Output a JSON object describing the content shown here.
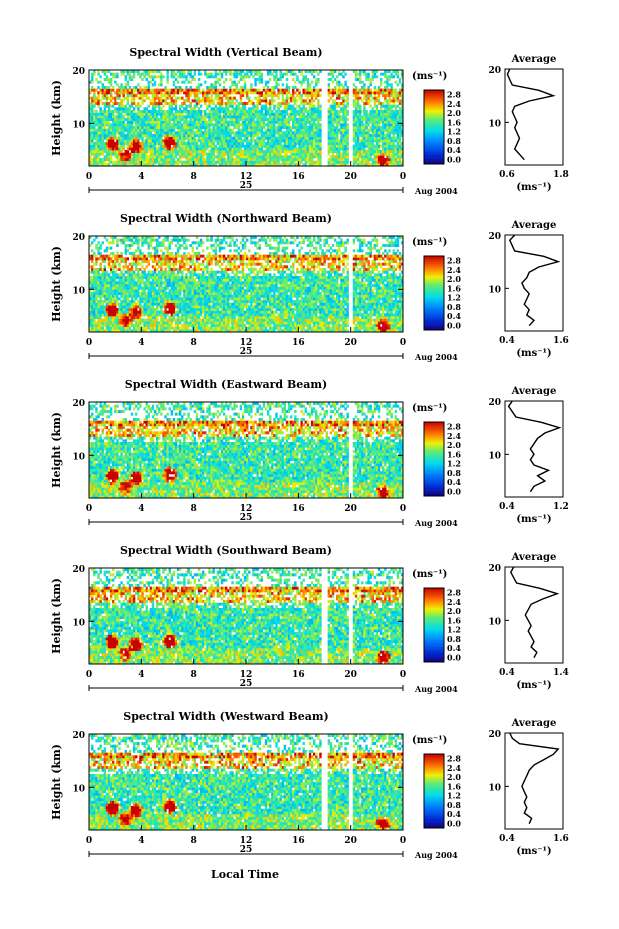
{
  "figure": {
    "xlabel": "Local Time",
    "date_label": "25",
    "month_label": "Aug 2004",
    "colorbar_unit": "(ms⁻¹)",
    "colorbar_ticks": [
      "0.0",
      "0.4",
      "0.8",
      "1.2",
      "1.6",
      "2.0",
      "2.4",
      "2.8"
    ],
    "average_title": "Average",
    "average_xlabel": "(ms⁻¹)"
  },
  "chart_data": [
    {
      "type": "heatmap",
      "title": "Spectral Width (Vertical Beam)",
      "ylabel": "Height (km)",
      "xlim": [
        0,
        24
      ],
      "ylim": [
        2,
        20
      ],
      "x_ticks": [
        "0",
        "4",
        "8",
        "12",
        "16",
        "20",
        "0"
      ],
      "y_ticks": [
        "10",
        "20"
      ],
      "colorbar_range": [
        0.0,
        3.0
      ],
      "avg_profile": {
        "xlim": [
          0.6,
          1.8
        ],
        "x_ticks": [
          "0.6",
          "1.8"
        ],
        "heights": [
          3,
          4,
          5,
          6,
          7,
          8,
          9,
          10,
          11,
          12,
          13,
          14,
          15,
          16,
          17,
          18,
          19,
          20
        ],
        "values": [
          1.0,
          0.9,
          0.8,
          0.85,
          0.9,
          0.85,
          0.8,
          0.85,
          0.8,
          0.75,
          0.8,
          1.1,
          1.6,
          1.3,
          0.75,
          0.7,
          0.65,
          0.7
        ]
      }
    },
    {
      "type": "heatmap",
      "title": "Spectral Width (Northward Beam)",
      "ylabel": "Height (km)",
      "xlim": [
        0,
        24
      ],
      "ylim": [
        2,
        20
      ],
      "x_ticks": [
        "0",
        "4",
        "8",
        "12",
        "16",
        "20",
        "0"
      ],
      "y_ticks": [
        "10",
        "20"
      ],
      "colorbar_range": [
        0.0,
        3.0
      ],
      "avg_profile": {
        "xlim": [
          0.4,
          1.6
        ],
        "x_ticks": [
          "0.4",
          "1.6"
        ],
        "heights": [
          3,
          4,
          5,
          6,
          7,
          8,
          9,
          10,
          11,
          12,
          13,
          14,
          15,
          16,
          17,
          18,
          19,
          20
        ],
        "values": [
          0.9,
          1.0,
          0.85,
          0.9,
          0.8,
          0.85,
          0.9,
          0.8,
          0.75,
          0.85,
          0.9,
          1.1,
          1.5,
          1.2,
          0.6,
          0.55,
          0.5,
          0.6
        ]
      }
    },
    {
      "type": "heatmap",
      "title": "Spectral Width (Eastward Beam)",
      "ylabel": "Height (km)",
      "xlim": [
        0,
        24
      ],
      "ylim": [
        2,
        20
      ],
      "x_ticks": [
        "0",
        "4",
        "8",
        "12",
        "16",
        "20",
        "0"
      ],
      "y_ticks": [
        "10",
        "20"
      ],
      "colorbar_range": [
        0.0,
        3.0
      ],
      "avg_profile": {
        "xlim": [
          0.4,
          1.2
        ],
        "x_ticks": [
          "0.4",
          "1.2"
        ],
        "heights": [
          3,
          4,
          5,
          6,
          7,
          8,
          9,
          10,
          11,
          12,
          13,
          14,
          15,
          16,
          17,
          18,
          19,
          20
        ],
        "values": [
          0.75,
          0.8,
          0.95,
          0.85,
          1.0,
          0.8,
          0.75,
          0.8,
          0.75,
          0.8,
          0.85,
          0.95,
          1.15,
          0.9,
          0.55,
          0.5,
          0.45,
          0.5
        ]
      }
    },
    {
      "type": "heatmap",
      "title": "Spectral Width (Southward Beam)",
      "ylabel": "Height (km)",
      "xlim": [
        0,
        24
      ],
      "ylim": [
        2,
        20
      ],
      "x_ticks": [
        "0",
        "4",
        "8",
        "12",
        "16",
        "20",
        "0"
      ],
      "y_ticks": [
        "10",
        "20"
      ],
      "colorbar_range": [
        0.0,
        3.0
      ],
      "avg_profile": {
        "xlim": [
          0.4,
          1.4
        ],
        "x_ticks": [
          "0.4",
          "1.4"
        ],
        "heights": [
          3,
          4,
          5,
          6,
          7,
          8,
          9,
          10,
          11,
          12,
          13,
          14,
          15,
          16,
          17,
          18,
          19,
          20
        ],
        "values": [
          0.9,
          0.95,
          0.85,
          0.9,
          0.85,
          0.8,
          0.85,
          0.8,
          0.75,
          0.8,
          0.85,
          1.05,
          1.3,
          1.0,
          0.6,
          0.55,
          0.5,
          0.55
        ]
      }
    },
    {
      "type": "heatmap",
      "title": "Spectral Width (Westward Beam)",
      "ylabel": "Height (km)",
      "xlim": [
        0,
        24
      ],
      "ylim": [
        2,
        20
      ],
      "x_ticks": [
        "0",
        "4",
        "8",
        "12",
        "16",
        "20",
        "0"
      ],
      "y_ticks": [
        "10",
        "20"
      ],
      "colorbar_range": [
        0.0,
        3.0
      ],
      "avg_profile": {
        "xlim": [
          0.4,
          1.6
        ],
        "x_ticks": [
          "0.4",
          "1.6"
        ],
        "heights": [
          3,
          4,
          5,
          6,
          7,
          8,
          9,
          10,
          11,
          12,
          13,
          14,
          15,
          16,
          17,
          18,
          19,
          20
        ],
        "values": [
          0.9,
          0.95,
          0.8,
          0.85,
          0.8,
          0.85,
          0.8,
          0.75,
          0.8,
          0.85,
          0.9,
          1.0,
          1.2,
          1.4,
          1.5,
          0.7,
          0.55,
          0.5
        ]
      }
    }
  ]
}
